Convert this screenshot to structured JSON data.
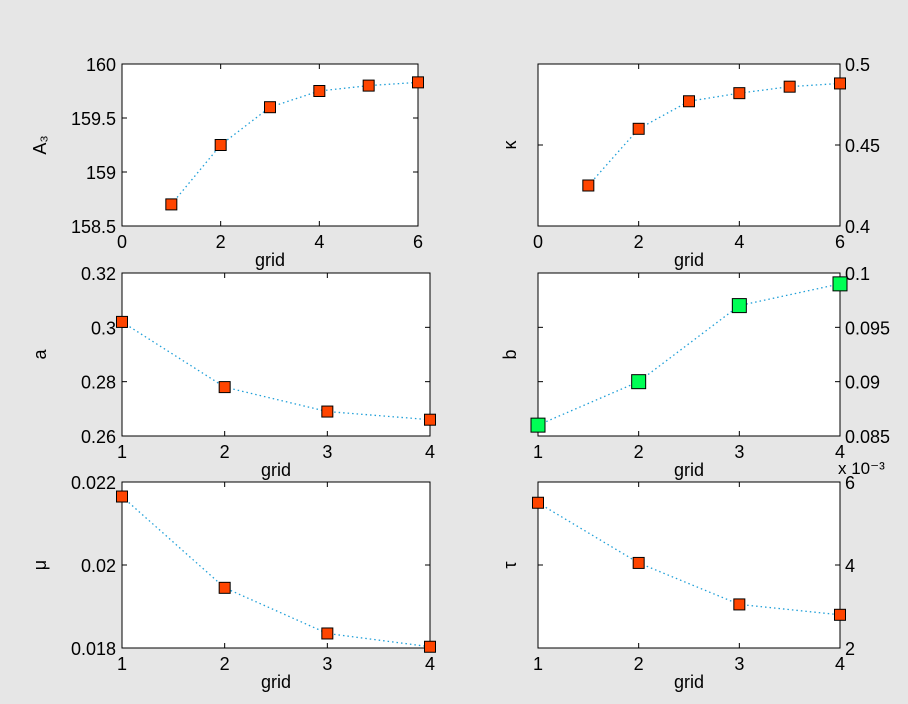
{
  "figure": {
    "background": "#e6e6e6"
  },
  "chart_data": [
    {
      "type": "scatter",
      "xlabel": "grid",
      "ylabel": "A₃",
      "xlim": [
        0,
        6
      ],
      "ylim": [
        158.5,
        160
      ],
      "xticks": [
        0,
        2,
        4,
        6
      ],
      "xtick_labels": [
        "0",
        "2",
        "4",
        "6"
      ],
      "yticks": [
        158.5,
        159,
        159.5,
        160
      ],
      "ytick_labels": [
        "158.5",
        "159",
        "159.5",
        "160"
      ],
      "y_axis_side": "left",
      "exponent": "",
      "series": [
        {
          "x": [
            1,
            2,
            3,
            4,
            5,
            6
          ],
          "values": [
            158.7,
            159.25,
            159.6,
            159.75,
            159.8,
            159.83
          ],
          "marker_color": "#ff4500",
          "line_color": "#1f9fd8"
        }
      ]
    },
    {
      "type": "scatter",
      "xlabel": "grid",
      "ylabel": "κ",
      "xlim": [
        0,
        6
      ],
      "ylim": [
        0.4,
        0.5
      ],
      "xticks": [
        0,
        2,
        4,
        6
      ],
      "xtick_labels": [
        "0",
        "2",
        "4",
        "6"
      ],
      "yticks": [
        0.4,
        0.45,
        0.5
      ],
      "ytick_labels": [
        "0.4",
        "0.45",
        "0.5"
      ],
      "y_axis_side": "right",
      "exponent": "",
      "series": [
        {
          "x": [
            1,
            2,
            3,
            4,
            5,
            6
          ],
          "values": [
            0.425,
            0.46,
            0.477,
            0.482,
            0.486,
            0.488
          ],
          "marker_color": "#ff4500",
          "line_color": "#1f9fd8"
        }
      ]
    },
    {
      "type": "scatter",
      "xlabel": "grid",
      "ylabel": "a",
      "xlim": [
        1,
        4
      ],
      "ylim": [
        0.26,
        0.32
      ],
      "xticks": [
        1,
        2,
        3,
        4
      ],
      "xtick_labels": [
        "1",
        "2",
        "3",
        "4"
      ],
      "yticks": [
        0.26,
        0.28,
        0.3,
        0.32
      ],
      "ytick_labels": [
        "0.26",
        "0.28",
        "0.3",
        "0.32"
      ],
      "y_axis_side": "left",
      "exponent": "",
      "series": [
        {
          "x": [
            1,
            2,
            3,
            4
          ],
          "values": [
            0.302,
            0.278,
            0.269,
            0.266
          ],
          "marker_color": "#ff4500",
          "line_color": "#1f9fd8"
        }
      ]
    },
    {
      "type": "scatter",
      "xlabel": "grid",
      "ylabel": "b",
      "xlim": [
        1,
        4
      ],
      "ylim": [
        0.085,
        0.1
      ],
      "xticks": [
        1,
        2,
        3,
        4
      ],
      "xtick_labels": [
        "1",
        "2",
        "3",
        "4"
      ],
      "yticks": [
        0.085,
        0.09,
        0.095,
        0.1
      ],
      "ytick_labels": [
        "0.085",
        "0.09",
        "0.095",
        "0.1"
      ],
      "y_axis_side": "right",
      "exponent": "",
      "series": [
        {
          "x": [
            1,
            2,
            3,
            4
          ],
          "values": [
            0.086,
            0.09,
            0.097,
            0.099
          ],
          "marker_color": "#00ff55",
          "line_color": "#1f9fd8"
        }
      ]
    },
    {
      "type": "scatter",
      "xlabel": "grid",
      "ylabel": "μ",
      "xlim": [
        1,
        4
      ],
      "ylim": [
        0.018,
        0.022
      ],
      "xticks": [
        1,
        2,
        3,
        4
      ],
      "xtick_labels": [
        "1",
        "2",
        "3",
        "4"
      ],
      "yticks": [
        0.018,
        0.02,
        0.022
      ],
      "ytick_labels": [
        "0.018",
        "0.02",
        "0.022"
      ],
      "y_axis_side": "left",
      "exponent": "",
      "series": [
        {
          "x": [
            1,
            2,
            3,
            4
          ],
          "values": [
            0.02165,
            0.01945,
            0.01835,
            0.01803
          ],
          "marker_color": "#ff4500",
          "line_color": "#1f9fd8"
        }
      ]
    },
    {
      "type": "scatter",
      "xlabel": "grid",
      "ylabel": "τ",
      "xlim": [
        1,
        4
      ],
      "ylim": [
        2,
        6
      ],
      "xticks": [
        1,
        2,
        3,
        4
      ],
      "xtick_labels": [
        "1",
        "2",
        "3",
        "4"
      ],
      "yticks": [
        2,
        4,
        6
      ],
      "ytick_labels": [
        "2",
        "4",
        "6"
      ],
      "y_axis_side": "right",
      "exponent": "x 10⁻³",
      "series": [
        {
          "x": [
            1,
            2,
            3,
            4
          ],
          "values": [
            5.5,
            4.05,
            3.05,
            2.8
          ],
          "marker_color": "#ff4500",
          "line_color": "#1f9fd8"
        }
      ]
    }
  ]
}
